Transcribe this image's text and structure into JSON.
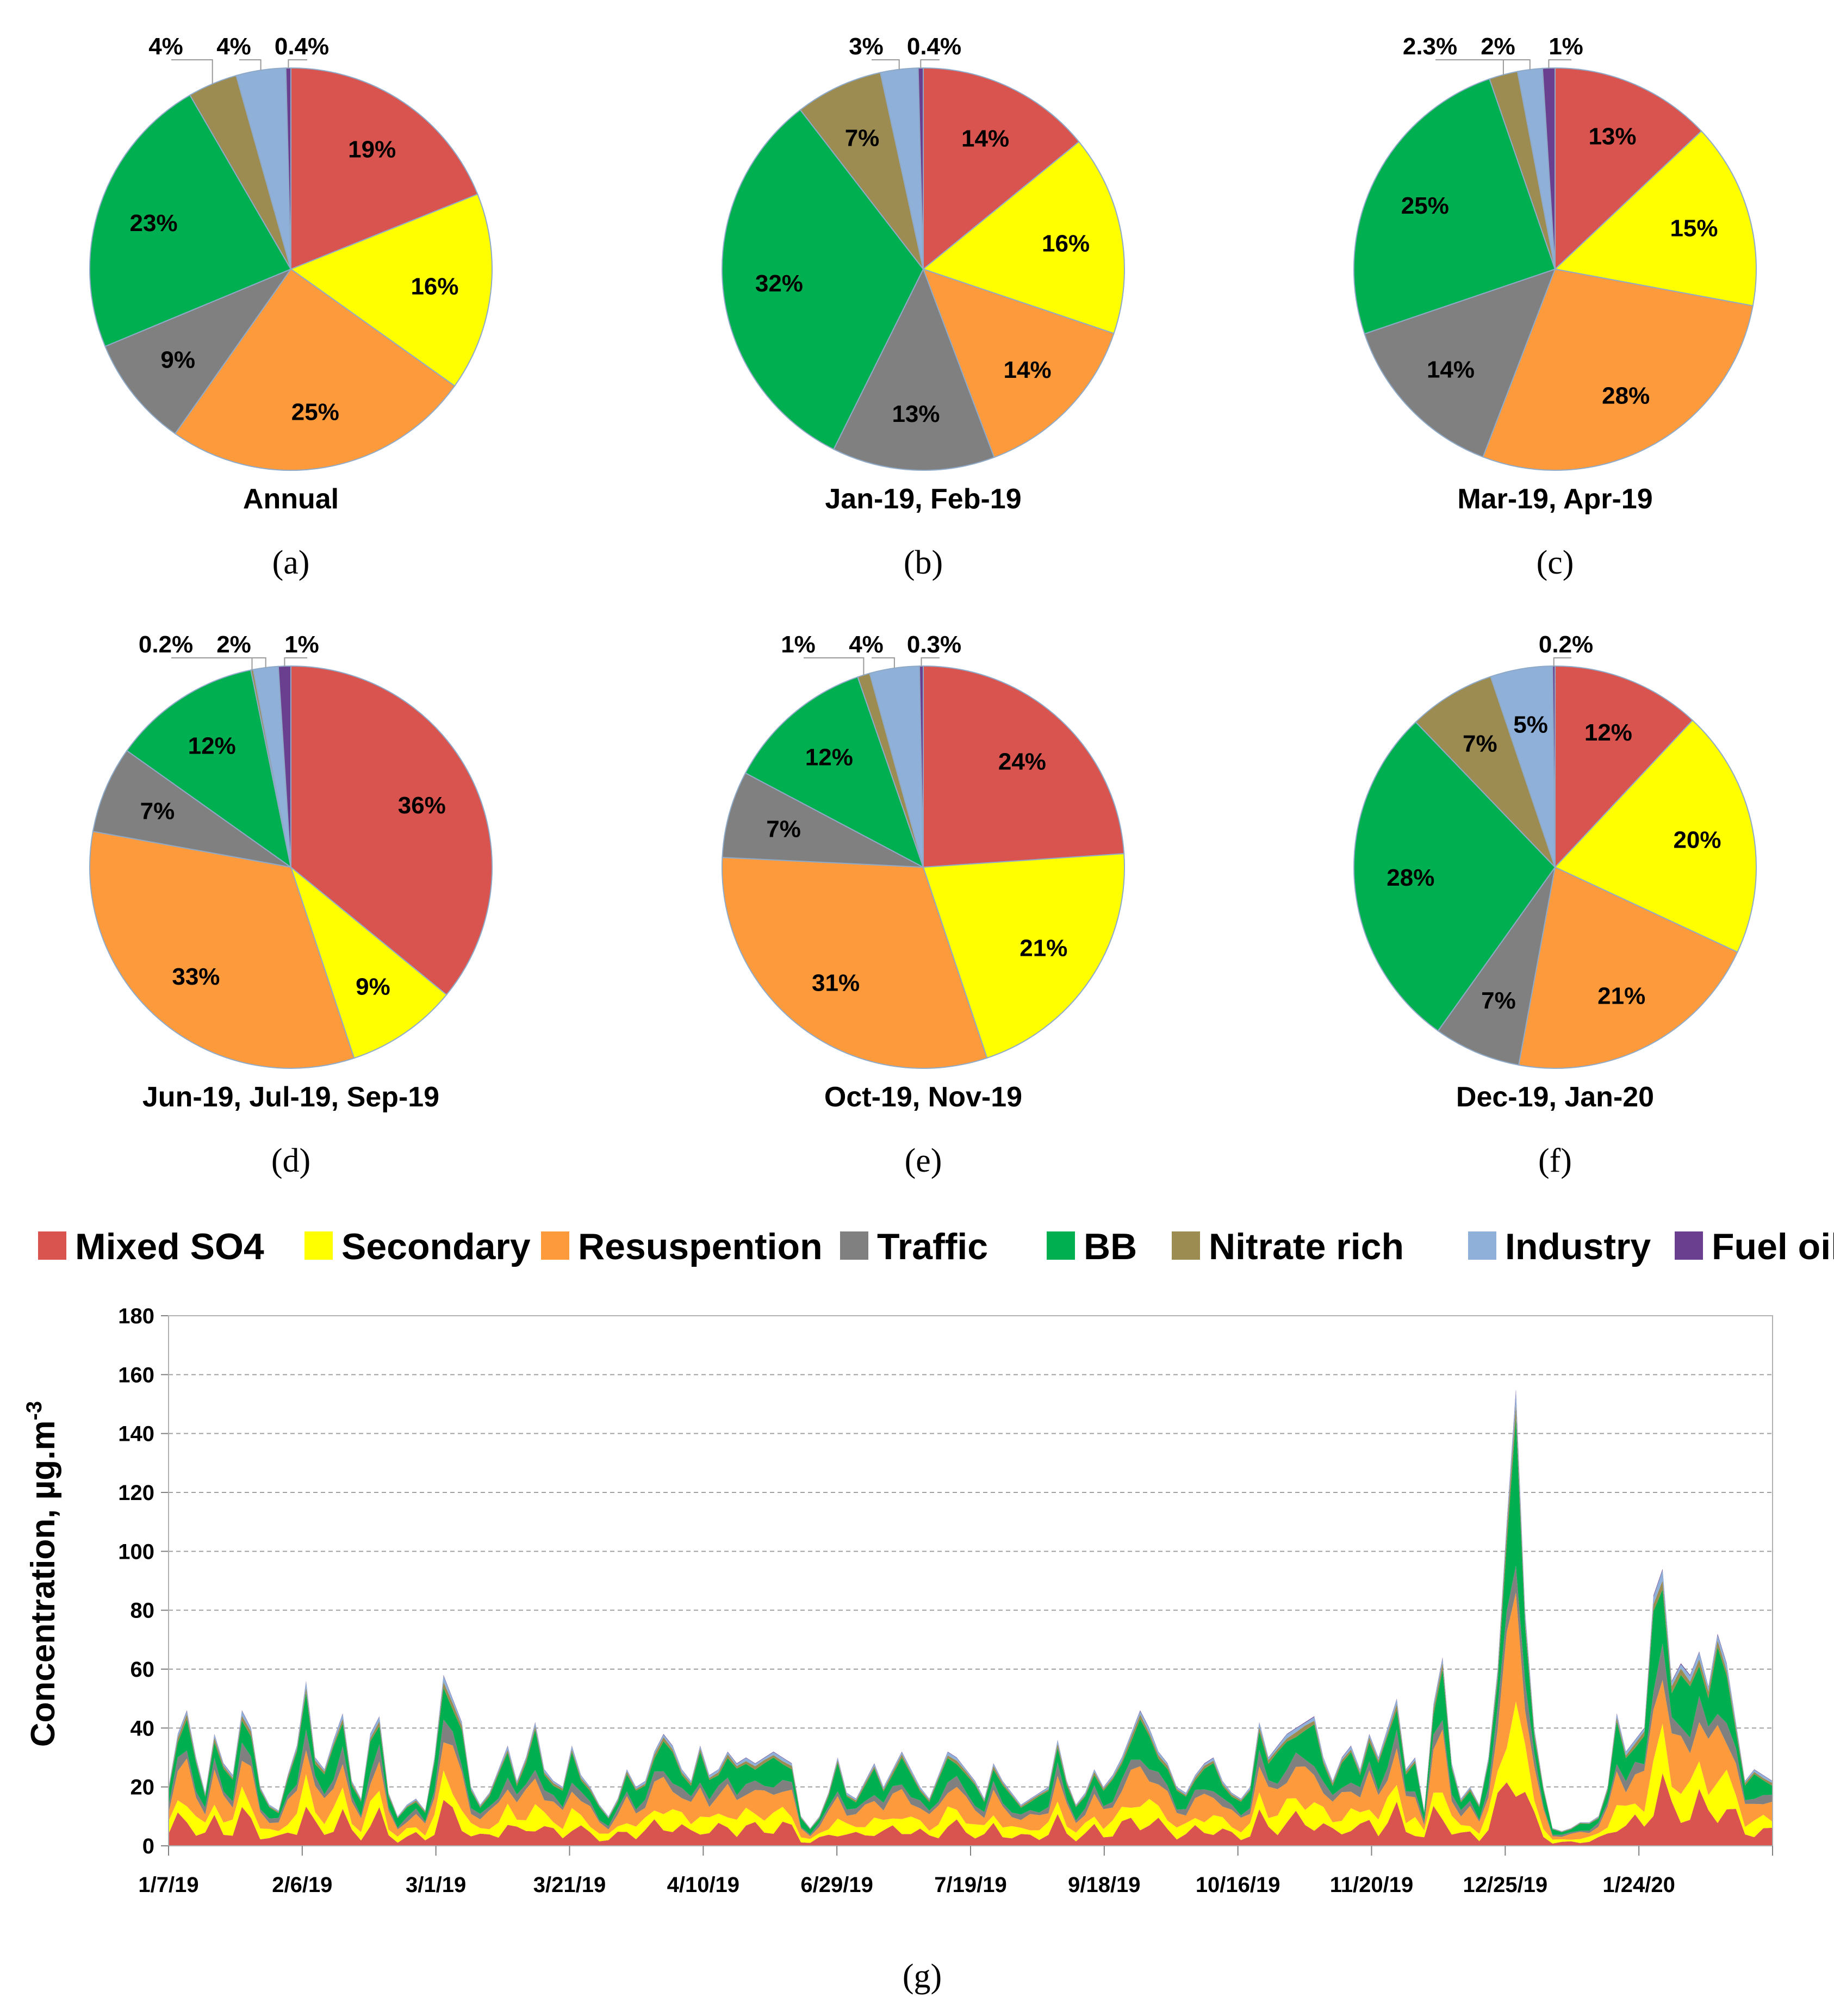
{
  "colors": {
    "Mixed SO4": "#d9534f",
    "Secondary": "#ffff00",
    "Resuspention": "#fd9a3c",
    "Traffic": "#808080",
    "BB": "#00b050",
    "Nitrate rich": "#9c8c52",
    "Industry": "#8fb0d8",
    "Fuel oil": "#6b3f8f"
  },
  "legend": [
    "Mixed SO4",
    "Secondary",
    "Resuspention",
    "Traffic",
    "BB",
    "Nitrate rich",
    "Industry",
    "Fuel oil"
  ],
  "chart_data": [
    {
      "type": "pie",
      "sublabel": "(a)",
      "title": "Annual",
      "slices": [
        {
          "name": "Mixed SO4",
          "value": 19,
          "label": "19%"
        },
        {
          "name": "Secondary",
          "value": 16,
          "label": "16%"
        },
        {
          "name": "Resuspention",
          "value": 25,
          "label": "25%"
        },
        {
          "name": "Traffic",
          "value": 9,
          "label": "9%"
        },
        {
          "name": "BB",
          "value": 23,
          "label": "23%"
        },
        {
          "name": "Nitrate rich",
          "value": 4,
          "label": "4%"
        },
        {
          "name": "Industry",
          "value": 4,
          "label": "4%"
        },
        {
          "name": "Fuel oil",
          "value": 0.4,
          "label": "0.4%"
        }
      ]
    },
    {
      "type": "pie",
      "sublabel": "(b)",
      "title": "Jan-19, Feb-19",
      "slices": [
        {
          "name": "Mixed SO4",
          "value": 14,
          "label": "14%"
        },
        {
          "name": "Secondary",
          "value": 16,
          "label": "16%"
        },
        {
          "name": "Resuspention",
          "value": 14,
          "label": "14%"
        },
        {
          "name": "Traffic",
          "value": 13,
          "label": "13%"
        },
        {
          "name": "BB",
          "value": 32,
          "label": "32%"
        },
        {
          "name": "Nitrate rich",
          "value": 7,
          "label": "7%"
        },
        {
          "name": "Industry",
          "value": 3,
          "label": "3%"
        },
        {
          "name": "Fuel oil",
          "value": 0.4,
          "label": "0.4%"
        }
      ]
    },
    {
      "type": "pie",
      "sublabel": "(c)",
      "title": "Mar-19, Apr-19",
      "slices": [
        {
          "name": "Mixed SO4",
          "value": 13,
          "label": "13%"
        },
        {
          "name": "Secondary",
          "value": 15,
          "label": "15%"
        },
        {
          "name": "Resuspention",
          "value": 28,
          "label": "28%"
        },
        {
          "name": "Traffic",
          "value": 14,
          "label": "14%"
        },
        {
          "name": "BB",
          "value": 25,
          "label": "25%"
        },
        {
          "name": "Nitrate rich",
          "value": 2.3,
          "label": "2.3%"
        },
        {
          "name": "Industry",
          "value": 2,
          "label": "2%"
        },
        {
          "name": "Fuel oil",
          "value": 1,
          "label": "1%"
        }
      ]
    },
    {
      "type": "pie",
      "sublabel": "(d)",
      "title": "Jun-19, Jul-19, Sep-19",
      "slices": [
        {
          "name": "Mixed SO4",
          "value": 36,
          "label": "36%"
        },
        {
          "name": "Secondary",
          "value": 9,
          "label": "9%"
        },
        {
          "name": "Resuspention",
          "value": 33,
          "label": "33%"
        },
        {
          "name": "Traffic",
          "value": 7,
          "label": "7%"
        },
        {
          "name": "BB",
          "value": 12,
          "label": "12%"
        },
        {
          "name": "Nitrate rich",
          "value": 0.2,
          "label": "0.2%"
        },
        {
          "name": "Industry",
          "value": 2,
          "label": "2%"
        },
        {
          "name": "Fuel oil",
          "value": 1,
          "label": "1%"
        }
      ]
    },
    {
      "type": "pie",
      "sublabel": "(e)",
      "title": "Oct-19, Nov-19",
      "slices": [
        {
          "name": "Mixed SO4",
          "value": 24,
          "label": "24%"
        },
        {
          "name": "Secondary",
          "value": 21,
          "label": "21%"
        },
        {
          "name": "Resuspention",
          "value": 31,
          "label": "31%"
        },
        {
          "name": "Traffic",
          "value": 7,
          "label": "7%"
        },
        {
          "name": "BB",
          "value": 12,
          "label": "12%"
        },
        {
          "name": "Nitrate rich",
          "value": 1,
          "label": "1%"
        },
        {
          "name": "Industry",
          "value": 4,
          "label": "4%"
        },
        {
          "name": "Fuel oil",
          "value": 0.3,
          "label": "0.3%"
        }
      ]
    },
    {
      "type": "pie",
      "sublabel": "(f)",
      "title": "Dec-19, Jan-20",
      "slices": [
        {
          "name": "Mixed SO4",
          "value": 12,
          "label": "12%"
        },
        {
          "name": "Secondary",
          "value": 20,
          "label": "20%"
        },
        {
          "name": "Resuspention",
          "value": 21,
          "label": "21%"
        },
        {
          "name": "Traffic",
          "value": 7,
          "label": "7%"
        },
        {
          "name": "BB",
          "value": 28,
          "label": "28%"
        },
        {
          "name": "Nitrate rich",
          "value": 7,
          "label": "7%"
        },
        {
          "name": "Industry",
          "value": 5,
          "label": "5%"
        },
        {
          "name": "Fuel oil",
          "value": 0.2,
          "label": "0.2%"
        }
      ]
    },
    {
      "type": "area",
      "sublabel": "(g)",
      "ylabel": "Concentration, µg.m",
      "ylabel_sup": "-3",
      "ylim": [
        0,
        180
      ],
      "yticks": [
        0,
        20,
        40,
        60,
        80,
        100,
        120,
        140,
        160,
        180
      ],
      "grid": true,
      "xticks": [
        "1/7/19",
        "2/6/19",
        "3/1/19",
        "3/21/19",
        "4/10/19",
        "6/29/19",
        "7/19/19",
        "9/18/19",
        "10/16/19",
        "11/20/19",
        "12/25/19",
        "1/24/20"
      ],
      "totals": [
        20,
        38,
        46,
        30,
        18,
        38,
        28,
        24,
        46,
        40,
        20,
        14,
        12,
        24,
        34,
        56,
        30,
        26,
        36,
        45,
        22,
        16,
        38,
        44,
        18,
        10,
        14,
        16,
        12,
        30,
        58,
        50,
        42,
        20,
        14,
        18,
        26,
        34,
        22,
        30,
        42,
        26,
        22,
        20,
        34,
        24,
        20,
        14,
        10,
        16,
        26,
        20,
        22,
        32,
        38,
        34,
        26,
        22,
        34,
        24,
        26,
        32,
        28,
        30,
        28,
        30,
        32,
        30,
        28,
        10,
        6,
        10,
        18,
        30,
        18,
        16,
        22,
        28,
        20,
        26,
        32,
        26,
        20,
        16,
        24,
        32,
        30,
        26,
        22,
        16,
        28,
        22,
        18,
        14,
        16,
        18,
        20,
        36,
        22,
        14,
        18,
        26,
        20,
        24,
        30,
        38,
        46,
        40,
        32,
        28,
        20,
        18,
        24,
        28,
        30,
        22,
        18,
        16,
        20,
        42,
        30,
        34,
        38,
        40,
        42,
        44,
        30,
        22,
        30,
        34,
        26,
        38,
        30,
        40,
        50,
        26,
        30,
        12,
        48,
        64,
        28,
        16,
        20,
        14,
        30,
        60,
        110,
        155,
        80,
        40,
        20,
        6,
        5,
        6,
        8,
        8,
        10,
        20,
        45,
        32,
        36,
        40,
        85,
        94,
        56,
        62,
        58,
        66,
        54,
        72,
        62,
        42,
        22,
        26,
        24,
        22
      ],
      "series": [
        {
          "name": "Mixed SO4",
          "fraction": 0.2
        },
        {
          "name": "Secondary",
          "fraction": 0.16
        },
        {
          "name": "Resuspention",
          "fraction": 0.25
        },
        {
          "name": "Traffic",
          "fraction": 0.09
        },
        {
          "name": "BB",
          "fraction": 0.23
        },
        {
          "name": "Nitrate rich",
          "fraction": 0.035
        },
        {
          "name": "Industry",
          "fraction": 0.03
        },
        {
          "name": "Fuel oil",
          "fraction": 0.005
        }
      ]
    }
  ]
}
